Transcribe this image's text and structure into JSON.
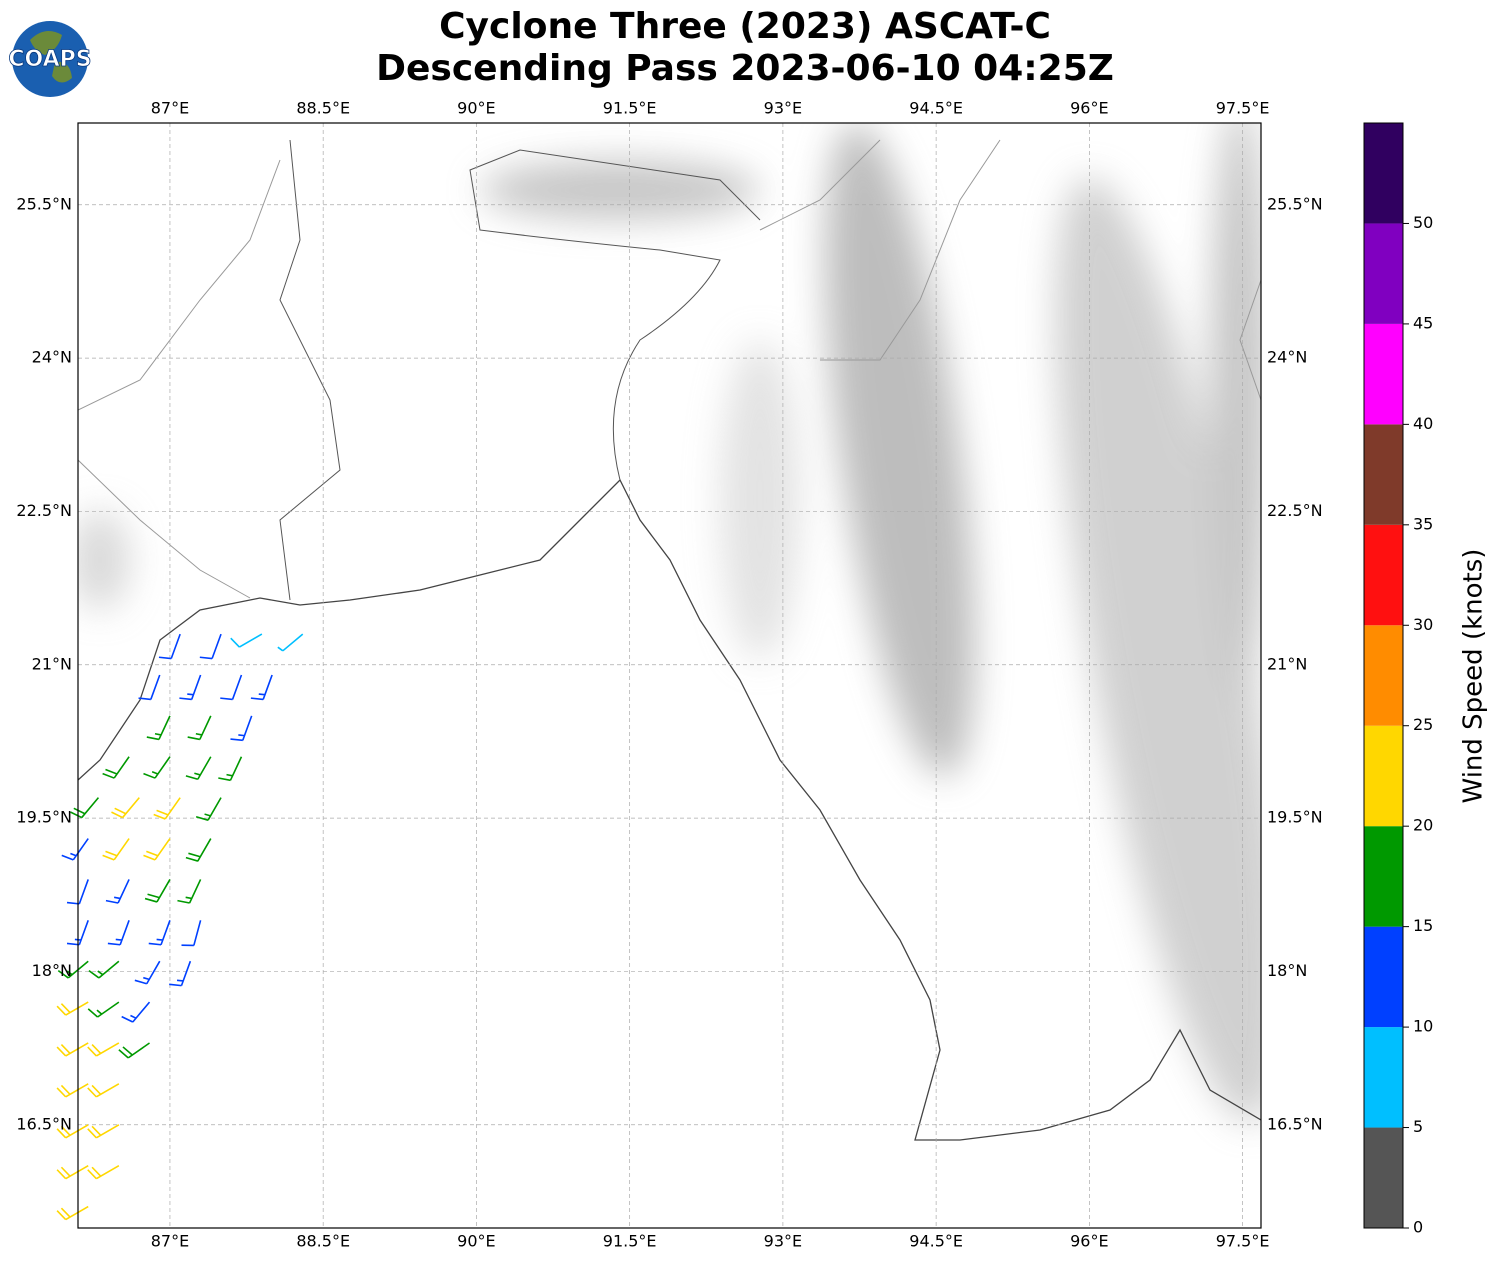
{
  "logo": "COAPS",
  "title": [
    "Cyclone Three (2023) ASCAT-C",
    "Descending Pass 2023-06-10 04:25Z"
  ],
  "map": {
    "xlim": [
      86.1,
      97.68
    ],
    "ylim": [
      15.49,
      26.3
    ],
    "xticks": [
      {
        "value": 87,
        "label": "87°E"
      },
      {
        "value": 88.5,
        "label": "88.5°E"
      },
      {
        "value": 90,
        "label": "90°E"
      },
      {
        "value": 91.5,
        "label": "91.5°E"
      },
      {
        "value": 93,
        "label": "93°E"
      },
      {
        "value": 94.5,
        "label": "94.5°E"
      },
      {
        "value": 96,
        "label": "96°E"
      },
      {
        "value": 97.5,
        "label": "97.5°E"
      }
    ],
    "yticks": [
      {
        "value": 16.5,
        "label": "16.5°N"
      },
      {
        "value": 18,
        "label": "18°N"
      },
      {
        "value": 19.5,
        "label": "19.5°N"
      },
      {
        "value": 21,
        "label": "21°N"
      },
      {
        "value": 22.5,
        "label": "22.5°N"
      },
      {
        "value": 24,
        "label": "24°N"
      },
      {
        "value": 25.5,
        "label": "25.5°N"
      }
    ],
    "grid": true
  },
  "wind_barbs": {
    "lon": [
      87.1,
      87.5,
      87.9,
      88.3,
      86.9,
      87.3,
      87.7,
      88.0,
      87.0,
      87.4,
      87.8,
      86.6,
      87.0,
      87.4,
      87.7,
      86.3,
      86.7,
      87.1,
      87.5,
      86.2,
      86.6,
      87.0,
      87.4,
      86.2,
      86.6,
      87.0,
      87.3,
      86.2,
      86.6,
      87.0,
      87.3,
      86.2,
      86.5,
      86.9,
      87.2,
      86.2,
      86.5,
      86.8,
      86.2,
      86.5,
      86.8,
      86.2,
      86.5,
      86.2,
      86.5,
      86.2,
      86.5,
      86.2
    ],
    "lat": [
      21.3,
      21.3,
      21.3,
      21.3,
      20.9,
      20.9,
      20.9,
      20.9,
      20.5,
      20.5,
      20.5,
      20.1,
      20.1,
      20.1,
      20.1,
      19.7,
      19.7,
      19.7,
      19.7,
      19.3,
      19.3,
      19.3,
      19.3,
      18.9,
      18.9,
      18.9,
      18.9,
      18.5,
      18.5,
      18.5,
      18.5,
      18.1,
      18.1,
      18.1,
      18.1,
      17.7,
      17.7,
      17.7,
      17.3,
      17.3,
      17.3,
      16.9,
      16.9,
      16.5,
      16.5,
      16.1,
      16.1,
      15.7
    ],
    "speed": [
      12,
      12,
      8,
      7,
      12,
      13,
      12,
      13,
      16,
      17,
      13,
      18,
      17,
      17,
      17,
      18,
      22,
      22,
      17,
      13,
      21,
      22,
      18,
      12,
      13,
      18,
      17,
      13,
      13,
      13,
      12,
      17,
      17,
      13,
      13,
      22,
      17,
      13,
      22,
      22,
      18,
      22,
      22,
      22,
      22,
      22,
      22,
      22
    ],
    "direction": [
      200,
      200,
      240,
      230,
      200,
      200,
      200,
      200,
      205,
      205,
      200,
      215,
      215,
      210,
      205,
      220,
      220,
      215,
      210,
      215,
      215,
      215,
      210,
      200,
      205,
      210,
      205,
      200,
      200,
      200,
      195,
      230,
      230,
      210,
      200,
      240,
      235,
      220,
      240,
      240,
      235,
      240,
      240,
      240,
      240,
      240,
      240,
      240
    ]
  },
  "colorbar": {
    "label": "Wind Speed (knots)",
    "bounds": [
      0,
      5,
      10,
      15,
      20,
      25,
      30,
      35,
      40,
      45,
      50,
      55
    ],
    "colors": [
      "#555555",
      "#00bfff",
      "#0040ff",
      "#009900",
      "#ffd700",
      "#ff8c00",
      "#ff1010",
      "#7f3a2a",
      "#ff00ff",
      "#8000c0",
      "#300060"
    ],
    "ticks": [
      0,
      5,
      10,
      15,
      20,
      25,
      30,
      35,
      40,
      45,
      50
    ]
  }
}
